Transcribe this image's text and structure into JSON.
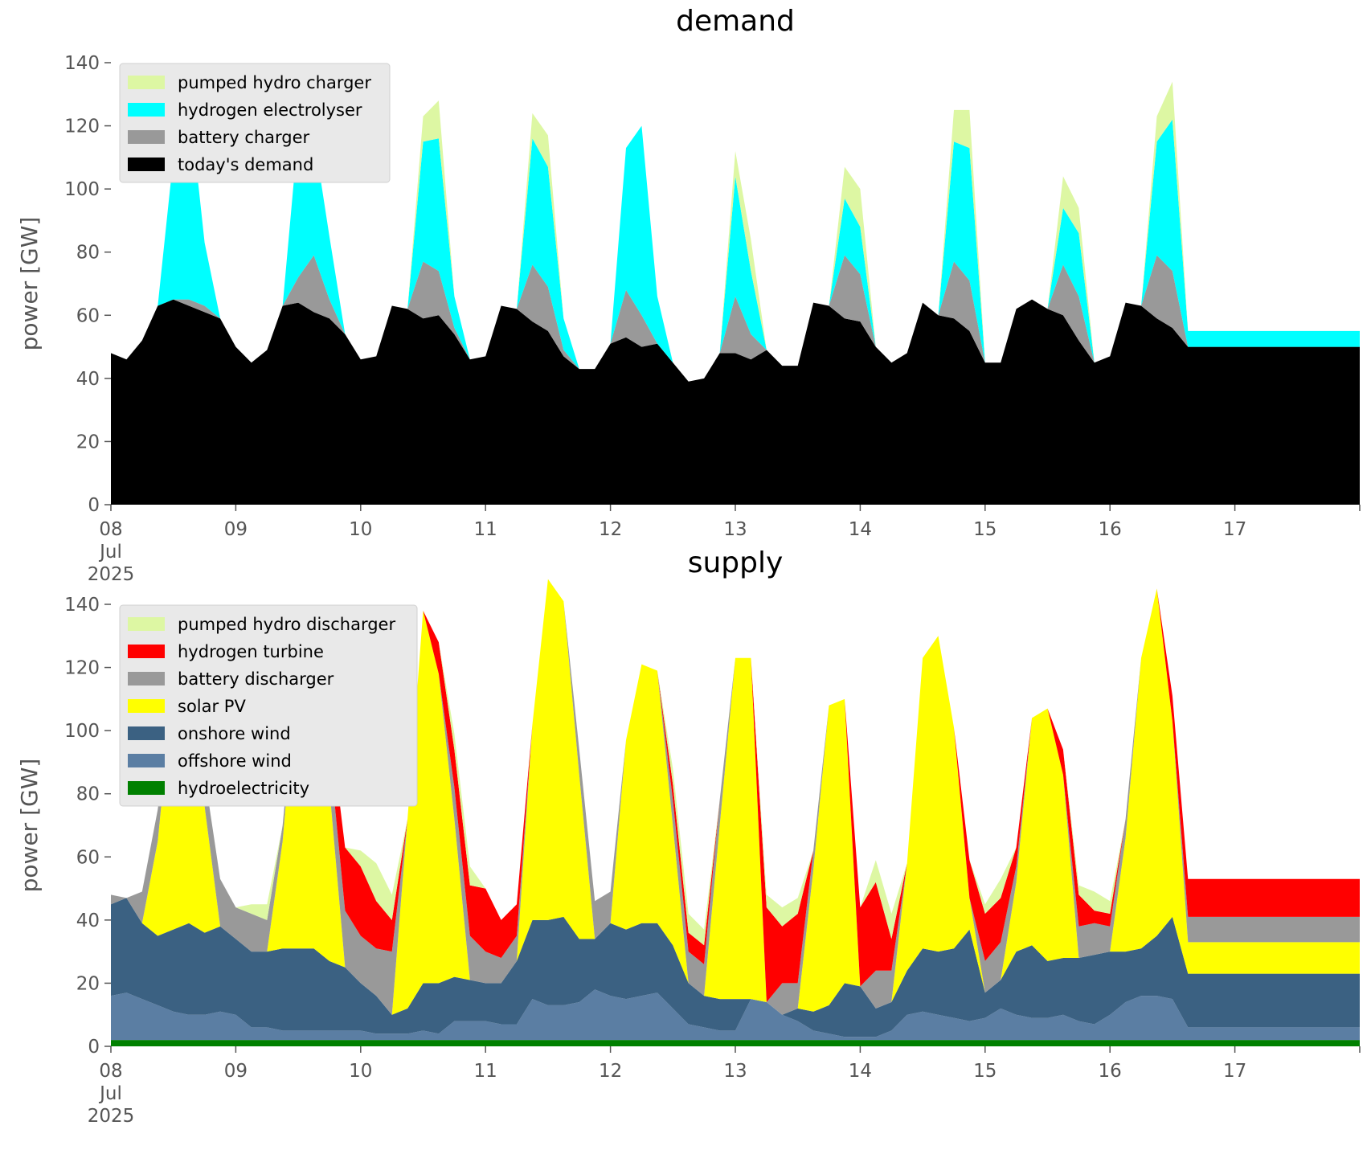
{
  "chart_data": [
    {
      "type": "area",
      "title": "demand",
      "ylabel": "power [GW]",
      "xlabel": "",
      "ylim": [
        0,
        140
      ],
      "yticks": [
        0,
        20,
        40,
        60,
        80,
        100,
        120,
        140
      ],
      "xlim": [
        "2025-07-08 00:00",
        "2025-07-18 00:00"
      ],
      "xtick_labels": [
        "08\nJul\n2025",
        "09",
        "10",
        "11",
        "12",
        "13",
        "14",
        "15",
        "16",
        "17"
      ],
      "grid": false,
      "legend_position": "top-left",
      "stacked": true,
      "x_start": "2025-07-08 00:00",
      "x_step": "3H",
      "series": [
        {
          "name": "today's demand",
          "color": "#000000",
          "values": [
            48,
            46,
            52,
            63,
            65,
            63,
            61,
            59,
            50,
            45,
            49,
            63,
            64,
            61,
            59,
            54,
            46,
            47,
            63,
            62,
            59,
            60,
            54,
            46,
            47,
            63,
            62,
            58,
            55,
            47,
            43,
            43,
            51,
            53,
            50,
            51,
            45,
            39,
            40,
            48,
            48,
            46,
            49,
            44,
            44,
            64,
            63,
            59,
            58,
            50,
            45,
            48,
            64,
            60,
            59,
            55,
            45,
            45,
            62,
            65,
            62,
            60,
            52,
            45,
            47,
            64,
            63,
            59,
            56,
            50
          ]
        },
        {
          "name": "battery charger",
          "color": "#999999",
          "values": [
            0,
            0,
            0,
            0,
            0,
            2,
            2,
            0,
            0,
            0,
            0,
            0,
            8,
            18,
            6,
            0,
            0,
            0,
            0,
            0,
            18,
            14,
            2,
            0,
            0,
            0,
            0,
            18,
            14,
            2,
            0,
            0,
            0,
            15,
            10,
            0,
            0,
            0,
            0,
            0,
            18,
            8,
            0,
            0,
            0,
            0,
            0,
            20,
            15,
            0,
            0,
            0,
            0,
            0,
            18,
            16,
            0,
            0,
            0,
            0,
            0,
            16,
            14,
            0,
            0,
            0,
            0,
            20,
            18,
            0
          ]
        },
        {
          "name": "hydrogen electrolyser",
          "color": "#00ffff",
          "values": [
            0,
            0,
            0,
            0,
            45,
            64,
            20,
            0,
            0,
            0,
            0,
            0,
            46,
            38,
            20,
            0,
            0,
            0,
            0,
            0,
            38,
            42,
            10,
            0,
            0,
            0,
            0,
            40,
            38,
            10,
            0,
            0,
            0,
            45,
            60,
            15,
            0,
            0,
            0,
            0,
            38,
            20,
            0,
            0,
            0,
            0,
            0,
            18,
            15,
            0,
            0,
            0,
            0,
            0,
            38,
            42,
            0,
            0,
            0,
            0,
            0,
            18,
            20,
            0,
            0,
            0,
            0,
            36,
            48,
            5
          ]
        },
        {
          "name": "pumped hydro charger",
          "color": "#ddf7a3",
          "values": [
            0,
            0,
            0,
            0,
            0,
            0,
            0,
            0,
            0,
            0,
            0,
            0,
            0,
            0,
            0,
            0,
            0,
            0,
            0,
            0,
            8,
            12,
            0,
            0,
            0,
            0,
            0,
            8,
            10,
            0,
            0,
            0,
            0,
            0,
            0,
            0,
            0,
            0,
            0,
            0,
            8,
            10,
            0,
            0,
            0,
            0,
            0,
            10,
            12,
            0,
            0,
            0,
            0,
            0,
            10,
            12,
            0,
            0,
            0,
            0,
            0,
            10,
            8,
            0,
            0,
            0,
            0,
            8,
            12,
            0
          ]
        }
      ]
    },
    {
      "type": "area",
      "title": "supply",
      "ylabel": "power [GW]",
      "xlabel": "",
      "ylim": [
        0,
        140
      ],
      "yticks": [
        0,
        20,
        40,
        60,
        80,
        100,
        120,
        140
      ],
      "xlim": [
        "2025-07-08 00:00",
        "2025-07-18 00:00"
      ],
      "xtick_labels": [
        "08\nJul\n2025",
        "09",
        "10",
        "11",
        "12",
        "13",
        "14",
        "15",
        "16",
        "17"
      ],
      "grid": false,
      "legend_position": "top-left",
      "stacked": true,
      "x_start": "2025-07-08 00:00",
      "x_step": "3H",
      "series": [
        {
          "name": "hydroelectricity",
          "color": "#008000",
          "values": [
            2,
            2,
            2,
            2,
            2,
            2,
            2,
            2,
            2,
            2,
            2,
            2,
            2,
            2,
            2,
            2,
            2,
            2,
            2,
            2,
            2,
            2,
            2,
            2,
            2,
            2,
            2,
            2,
            2,
            2,
            2,
            2,
            2,
            2,
            2,
            2,
            2,
            2,
            2,
            2,
            2,
            2,
            2,
            2,
            2,
            2,
            2,
            2,
            2,
            2,
            2,
            2,
            2,
            2,
            2,
            2,
            2,
            2,
            2,
            2,
            2,
            2,
            2,
            2,
            2,
            2,
            2,
            2,
            2,
            2
          ]
        },
        {
          "name": "offshore wind",
          "color": "#5b7ea3",
          "values": [
            14,
            15,
            13,
            11,
            9,
            8,
            8,
            9,
            8,
            4,
            4,
            3,
            3,
            3,
            3,
            3,
            3,
            2,
            2,
            2,
            3,
            2,
            6,
            6,
            6,
            5,
            5,
            13,
            11,
            11,
            12,
            16,
            14,
            13,
            14,
            15,
            10,
            5,
            4,
            3,
            3,
            13,
            12,
            8,
            6,
            3,
            2,
            1,
            1,
            1,
            3,
            8,
            9,
            8,
            7,
            6,
            7,
            10,
            8,
            7,
            7,
            8,
            6,
            5,
            8,
            12,
            14,
            14,
            13,
            4
          ]
        },
        {
          "name": "onshore wind",
          "color": "#3b6182",
          "values": [
            29,
            30,
            24,
            22,
            26,
            29,
            26,
            27,
            24,
            24,
            24,
            26,
            26,
            26,
            22,
            20,
            15,
            12,
            6,
            8,
            15,
            16,
            14,
            13,
            12,
            13,
            20,
            25,
            27,
            28,
            20,
            16,
            23,
            22,
            23,
            22,
            20,
            13,
            10,
            10,
            10,
            0,
            0,
            0,
            4,
            6,
            9,
            17,
            16,
            9,
            9,
            14,
            20,
            20,
            22,
            29,
            8,
            9,
            20,
            23,
            18,
            18,
            20,
            22,
            20,
            16,
            15,
            19,
            26,
            17
          ]
        },
        {
          "name": "solar PV",
          "color": "#ffff00",
          "values": [
            0,
            0,
            0,
            30,
            78,
            86,
            40,
            0,
            0,
            0,
            0,
            34,
            92,
            98,
            55,
            0,
            0,
            0,
            0,
            60,
            118,
            98,
            50,
            0,
            0,
            0,
            0,
            62,
            108,
            100,
            52,
            0,
            0,
            60,
            82,
            80,
            38,
            0,
            0,
            55,
            108,
            108,
            0,
            0,
            0,
            45,
            95,
            90,
            0,
            0,
            0,
            34,
            92,
            100,
            70,
            10,
            0,
            0,
            22,
            72,
            80,
            58,
            0,
            0,
            0,
            36,
            92,
            110,
            62,
            10
          ]
        },
        {
          "name": "battery discharger",
          "color": "#999999",
          "values": [
            3,
            0,
            10,
            10,
            0,
            0,
            10,
            15,
            10,
            12,
            10,
            5,
            0,
            0,
            12,
            18,
            15,
            15,
            20,
            0,
            0,
            0,
            10,
            14,
            10,
            8,
            8,
            0,
            0,
            0,
            8,
            12,
            10,
            0,
            0,
            0,
            8,
            10,
            10,
            8,
            0,
            0,
            0,
            10,
            8,
            6,
            0,
            0,
            0,
            12,
            10,
            0,
            0,
            0,
            0,
            0,
            10,
            12,
            5,
            0,
            0,
            0,
            10,
            10,
            8,
            6,
            0,
            0,
            0,
            8
          ]
        },
        {
          "name": "hydrogen turbine",
          "color": "#ff0000",
          "values": [
            0,
            0,
            0,
            0,
            0,
            0,
            0,
            0,
            0,
            0,
            0,
            0,
            0,
            0,
            10,
            20,
            22,
            15,
            10,
            0,
            0,
            10,
            12,
            16,
            20,
            12,
            10,
            0,
            0,
            0,
            0,
            0,
            0,
            0,
            0,
            0,
            5,
            6,
            6,
            0,
            0,
            0,
            30,
            18,
            22,
            0,
            0,
            0,
            25,
            28,
            10,
            0,
            0,
            0,
            0,
            12,
            15,
            14,
            6,
            0,
            0,
            8,
            10,
            4,
            4,
            0,
            0,
            0,
            8,
            12
          ]
        },
        {
          "name": "pumped hydro discharger",
          "color": "#ddf7a3",
          "values": [
            0,
            0,
            0,
            0,
            0,
            0,
            0,
            0,
            0,
            3,
            5,
            0,
            0,
            0,
            0,
            0,
            5,
            12,
            8,
            0,
            0,
            0,
            5,
            6,
            0,
            0,
            0,
            0,
            0,
            0,
            0,
            0,
            0,
            0,
            0,
            0,
            5,
            6,
            5,
            0,
            0,
            0,
            4,
            6,
            5,
            0,
            0,
            0,
            0,
            7,
            8,
            0,
            0,
            0,
            0,
            0,
            3,
            6,
            0,
            0,
            0,
            0,
            3,
            6,
            4,
            0,
            0,
            0,
            0,
            0
          ]
        }
      ]
    }
  ]
}
